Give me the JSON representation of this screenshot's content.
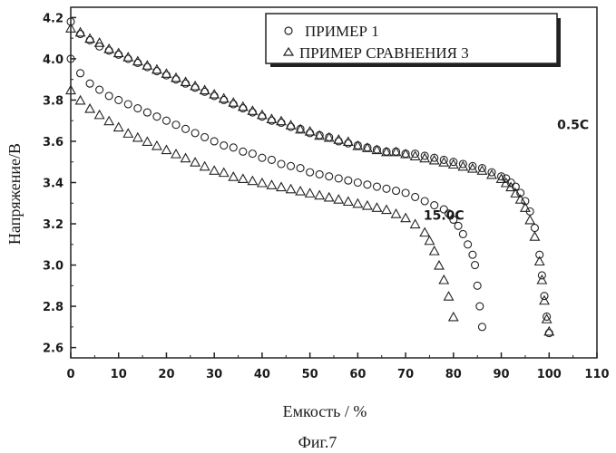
{
  "chart_data": {
    "type": "scatter",
    "xlabel": "Емкость / %",
    "ylabel": "Напряжение/В",
    "xlim": [
      0,
      110
    ],
    "ylim": [
      2.55,
      4.25
    ],
    "xticks": [
      "0",
      "10",
      "20",
      "30",
      "40",
      "50",
      "60",
      "70",
      "80",
      "90",
      "100",
      "110"
    ],
    "yticks": [
      "2.6",
      "2.8",
      "3.0",
      "3.2",
      "3.4",
      "3.6",
      "3.8",
      "4.0",
      "4.2"
    ],
    "grid": false,
    "legend_position": "top-right",
    "series": [
      {
        "name": "ПРИМЕР 1",
        "marker": "circle",
        "curves": [
          {
            "label": "0.5C",
            "x": [
              0,
              2,
              4,
              6,
              8,
              10,
              12,
              14,
              16,
              18,
              20,
              22,
              24,
              26,
              28,
              30,
              32,
              34,
              36,
              38,
              40,
              42,
              44,
              46,
              48,
              50,
              52,
              54,
              56,
              58,
              60,
              62,
              64,
              66,
              68,
              70,
              72,
              74,
              76,
              78,
              80,
              82,
              84,
              86,
              88,
              90,
              91,
              92,
              93,
              94,
              95,
              96,
              97,
              98,
              98.5,
              99,
              99.5,
              100
            ],
            "y": [
              4.18,
              4.12,
              4.09,
              4.06,
              4.04,
              4.02,
              4.0,
              3.98,
              3.96,
              3.94,
              3.92,
              3.9,
              3.88,
              3.86,
              3.84,
              3.82,
              3.8,
              3.78,
              3.76,
              3.74,
              3.72,
              3.7,
              3.69,
              3.67,
              3.66,
              3.64,
              3.63,
              3.62,
              3.6,
              3.59,
              3.58,
              3.57,
              3.56,
              3.55,
              3.55,
              3.54,
              3.54,
              3.53,
              3.52,
              3.51,
              3.5,
              3.49,
              3.48,
              3.47,
              3.45,
              3.43,
              3.42,
              3.4,
              3.38,
              3.35,
              3.31,
              3.26,
              3.18,
              3.05,
              2.95,
              2.85,
              2.75,
              2.67
            ]
          },
          {
            "label": "15.0C",
            "x": [
              0,
              2,
              4,
              6,
              8,
              10,
              12,
              14,
              16,
              18,
              20,
              22,
              24,
              26,
              28,
              30,
              32,
              34,
              36,
              38,
              40,
              42,
              44,
              46,
              48,
              50,
              52,
              54,
              56,
              58,
              60,
              62,
              64,
              66,
              68,
              70,
              72,
              74,
              76,
              78,
              79,
              80,
              81,
              82,
              83,
              84,
              84.5,
              85,
              85.5,
              86
            ],
            "y": [
              4.0,
              3.93,
              3.88,
              3.85,
              3.82,
              3.8,
              3.78,
              3.76,
              3.74,
              3.72,
              3.7,
              3.68,
              3.66,
              3.64,
              3.62,
              3.6,
              3.58,
              3.57,
              3.55,
              3.54,
              3.52,
              3.51,
              3.49,
              3.48,
              3.47,
              3.45,
              3.44,
              3.43,
              3.42,
              3.41,
              3.4,
              3.39,
              3.38,
              3.37,
              3.36,
              3.35,
              3.33,
              3.31,
              3.29,
              3.27,
              3.25,
              3.22,
              3.19,
              3.15,
              3.1,
              3.05,
              3.0,
              2.9,
              2.8,
              2.7
            ]
          }
        ]
      },
      {
        "name": "ПРИМЕР СРАВНЕНИЯ 3",
        "marker": "triangle",
        "curves": [
          {
            "label": "0.5C",
            "x": [
              0,
              2,
              4,
              6,
              8,
              10,
              12,
              14,
              16,
              18,
              20,
              22,
              24,
              26,
              28,
              30,
              32,
              34,
              36,
              38,
              40,
              42,
              44,
              46,
              48,
              50,
              52,
              54,
              56,
              58,
              60,
              62,
              64,
              66,
              68,
              70,
              72,
              74,
              76,
              78,
              80,
              82,
              84,
              86,
              88,
              90,
              91,
              92,
              93,
              94,
              95,
              96,
              97,
              98,
              98.5,
              99,
              99.5,
              100
            ],
            "y": [
              4.15,
              4.13,
              4.1,
              4.08,
              4.05,
              4.03,
              4.01,
              3.99,
              3.97,
              3.95,
              3.93,
              3.91,
              3.89,
              3.87,
              3.85,
              3.83,
              3.81,
              3.79,
              3.77,
              3.75,
              3.73,
              3.71,
              3.7,
              3.68,
              3.66,
              3.65,
              3.63,
              3.62,
              3.61,
              3.6,
              3.58,
              3.57,
              3.56,
              3.55,
              3.55,
              3.54,
              3.53,
              3.52,
              3.51,
              3.5,
              3.49,
              3.48,
              3.47,
              3.46,
              3.44,
              3.42,
              3.4,
              3.38,
              3.35,
              3.32,
              3.28,
              3.22,
              3.14,
              3.02,
              2.93,
              2.83,
              2.74,
              2.68
            ]
          },
          {
            "label": "15.0C",
            "x": [
              0,
              2,
              4,
              6,
              8,
              10,
              12,
              14,
              16,
              18,
              20,
              22,
              24,
              26,
              28,
              30,
              32,
              34,
              36,
              38,
              40,
              42,
              44,
              46,
              48,
              50,
              52,
              54,
              56,
              58,
              60,
              62,
              64,
              66,
              68,
              70,
              72,
              74,
              75,
              76,
              77,
              78,
              79,
              80
            ],
            "y": [
              3.85,
              3.8,
              3.76,
              3.73,
              3.7,
              3.67,
              3.64,
              3.62,
              3.6,
              3.58,
              3.56,
              3.54,
              3.52,
              3.5,
              3.48,
              3.46,
              3.45,
              3.43,
              3.42,
              3.41,
              3.4,
              3.39,
              3.38,
              3.37,
              3.36,
              3.35,
              3.34,
              3.33,
              3.32,
              3.31,
              3.3,
              3.29,
              3.28,
              3.27,
              3.25,
              3.23,
              3.2,
              3.16,
              3.12,
              3.07,
              3.0,
              2.93,
              2.85,
              2.75
            ]
          }
        ]
      }
    ],
    "annotations": [
      {
        "text": "0.5C",
        "x": 105,
        "y": 3.66
      },
      {
        "text": "15.0C",
        "x": 78,
        "y": 3.22
      }
    ],
    "caption": "Фиг.7"
  }
}
